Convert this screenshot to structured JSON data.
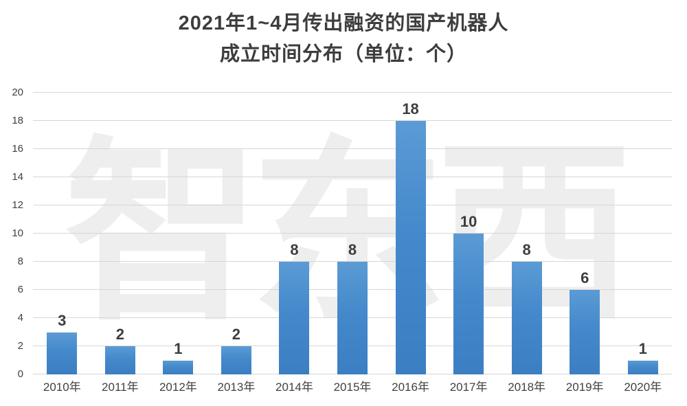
{
  "page": {
    "background": "#ffffff"
  },
  "watermark": {
    "text": "智东西"
  },
  "chart_data": {
    "type": "bar",
    "title_line1": "2021年1~4月传出融资的国产机器人",
    "title_line2": "成立时间分布（单位：个）",
    "categories": [
      "2010年",
      "2011年",
      "2012年",
      "2013年",
      "2014年",
      "2015年",
      "2016年",
      "2017年",
      "2018年",
      "2019年",
      "2020年"
    ],
    "values": [
      3,
      2,
      1,
      2,
      8,
      8,
      18,
      10,
      8,
      6,
      1
    ],
    "xlabel": "",
    "ylabel": "",
    "ylim": [
      0,
      20
    ],
    "yticks": [
      0,
      2,
      4,
      6,
      8,
      10,
      12,
      14,
      16,
      18,
      20
    ],
    "grid": true,
    "legend": false,
    "bar_color_top": "#5b9bd5",
    "bar_color_bottom": "#3b7fc2",
    "gridline_color": "#d6d6d6",
    "text_color": "#404040",
    "title_color": "#3d3d3d",
    "watermark_color": "#eeeeee"
  }
}
